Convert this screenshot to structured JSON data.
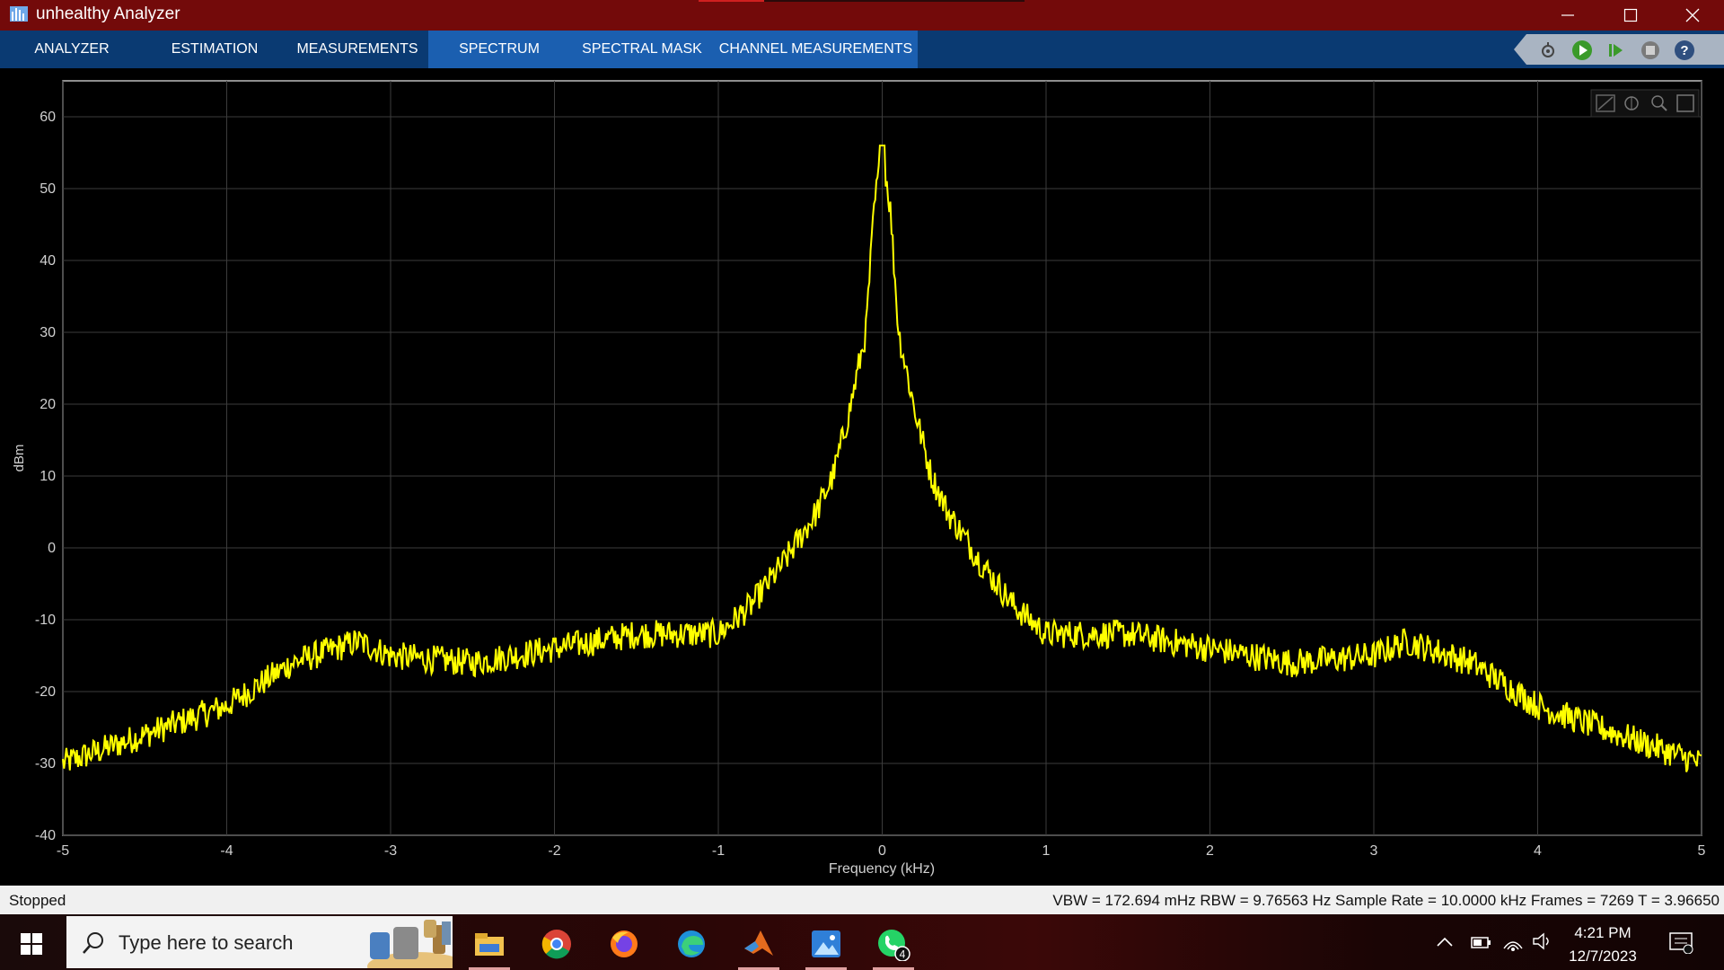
{
  "window": {
    "title": "unhealthy Analyzer"
  },
  "toolstrip": {
    "tabs": [
      {
        "label": "ANALYZER",
        "active": false
      },
      {
        "label": "ESTIMATION",
        "active": false
      },
      {
        "label": "MEASUREMENTS",
        "active": false
      },
      {
        "label": "SPECTRUM",
        "active": true
      },
      {
        "label": "SPECTRAL MASK",
        "active": false
      },
      {
        "label": "CHANNEL MEASUREMENTS",
        "active": false
      }
    ],
    "buttons": [
      "settings-icon",
      "run-icon",
      "step-forward-icon",
      "stop-icon",
      "help-icon"
    ]
  },
  "plot_toolbar": [
    "zoom-axes-icon",
    "pan-icon",
    "zoom-in-icon",
    "full-view-icon"
  ],
  "chart_data": {
    "type": "line",
    "title": "",
    "xlabel": "Frequency (kHz)",
    "ylabel": "dBm",
    "xlim": [
      -5,
      5
    ],
    "ylim": [
      -40,
      65
    ],
    "xticks": [
      "-5",
      "-4",
      "-3",
      "-2",
      "-1",
      "0",
      "1",
      "2",
      "3",
      "4",
      "5"
    ],
    "yticks": [
      "-40",
      "-30",
      "-20",
      "-10",
      "0",
      "10",
      "20",
      "30",
      "40",
      "50",
      "60"
    ],
    "grid": true,
    "series_color": "#ffff00",
    "x": [
      -5,
      -4.5,
      -4,
      -3.6,
      -3.2,
      -3,
      -2.5,
      -2,
      -1.5,
      -1,
      -0.8,
      -0.6,
      -0.4,
      -0.3,
      -0.2,
      -0.1,
      -0.05,
      0,
      0.05,
      0.1,
      0.2,
      0.3,
      0.4,
      0.6,
      0.8,
      1,
      1.5,
      2,
      2.5,
      3,
      3.2,
      3.6,
      4,
      4.5,
      5
    ],
    "y": [
      -30,
      -26,
      -22,
      -16,
      -13,
      -15,
      -16,
      -14,
      -12,
      -12,
      -8,
      -2,
      5,
      10,
      19,
      30,
      47,
      56,
      47,
      30,
      19,
      10,
      5,
      -2,
      -8,
      -12,
      -12,
      -14,
      -16,
      -15,
      -13,
      -16,
      -22,
      -26,
      -30
    ]
  },
  "status": {
    "left": "Stopped",
    "right": "VBW = 172.694 mHz  RBW = 9.76563 Hz  Sample Rate = 10.0000 kHz  Frames = 7269  T = 3.96650"
  },
  "taskbar": {
    "search_placeholder": "Type here to search",
    "apps": [
      "windows-start-icon",
      "file-explorer-icon",
      "chrome-icon",
      "firefox-icon",
      "edge-icon",
      "matlab-icon",
      "photos-icon",
      "whatsapp-icon"
    ],
    "whatsapp_badge": "4",
    "time": "4:21 PM",
    "date": "12/7/2023"
  },
  "colors": {
    "titlebar": "#730a0a",
    "toolstrip": "#0a3a72",
    "active_tab": "#1b5fb0",
    "trace": "#ffff00"
  }
}
